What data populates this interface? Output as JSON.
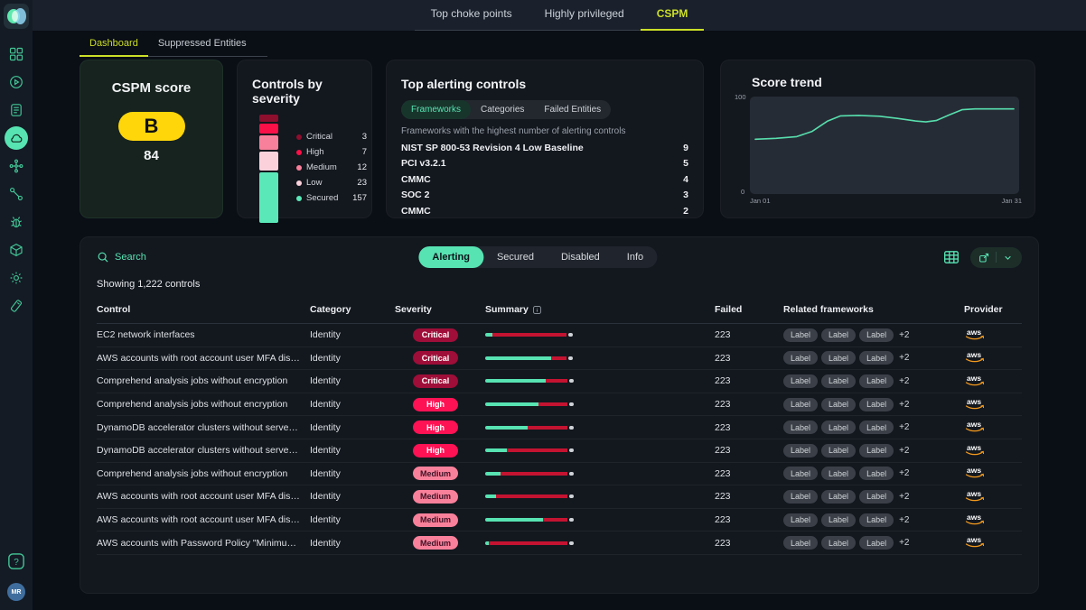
{
  "topbar": {
    "tabs": [
      {
        "label": "Top choke points",
        "active": false
      },
      {
        "label": "Highly privileged",
        "active": false
      },
      {
        "label": "CSPM",
        "active": true
      }
    ]
  },
  "subtabs": [
    {
      "label": "Dashboard",
      "active": true
    },
    {
      "label": "Suppressed Entities",
      "active": false
    }
  ],
  "sidebar": {
    "items": [
      {
        "name": "dashboard-grid",
        "active": false
      },
      {
        "name": "play-circle",
        "active": false
      },
      {
        "name": "document",
        "active": false
      },
      {
        "name": "cloud",
        "active": true
      },
      {
        "name": "nodes",
        "active": false
      },
      {
        "name": "route",
        "active": false
      },
      {
        "name": "bug",
        "active": false
      },
      {
        "name": "cube",
        "active": false
      },
      {
        "name": "gear",
        "active": false
      },
      {
        "name": "tag",
        "active": false
      }
    ],
    "avatar_initials": "MR"
  },
  "score_card": {
    "title": "CSPM score",
    "grade": "B",
    "score": "84",
    "grade_color": "#ffd60a"
  },
  "alerting_card": {
    "title": "Top alerting controls",
    "tabs": [
      {
        "label": "Frameworks",
        "active": true
      },
      {
        "label": "Categories",
        "active": false
      },
      {
        "label": "Failed Entities",
        "active": false
      }
    ],
    "subtitle": "Frameworks with the highest number of alerting controls",
    "items": [
      {
        "name": "NIST SP 800-53 Revision 4 Low Baseline",
        "value": 9
      },
      {
        "name": "PCI v3.2.1",
        "value": 5
      },
      {
        "name": "CMMC",
        "value": 4
      },
      {
        "name": "SOC 2",
        "value": 3
      },
      {
        "name": "CMMC",
        "value": 2
      }
    ]
  },
  "trend_card": {
    "title": "Score trend",
    "y_max": "100",
    "y_min": "0",
    "x_start": "Jan 01",
    "x_end": "Jan 31"
  },
  "chart_data": [
    {
      "type": "bar",
      "title": "Controls by severity",
      "orientation": "stacked-vertical",
      "categories": [
        "Critical",
        "High",
        "Medium",
        "Low",
        "Secured"
      ],
      "values": [
        3,
        7,
        12,
        23,
        157
      ],
      "colors": [
        "#8e0e2e",
        "#fb1048",
        "#f9809a",
        "#fbd2dc",
        "#5be8b8"
      ],
      "legend_position": "right"
    },
    {
      "type": "line",
      "title": "Score trend",
      "x": [
        0,
        8,
        16,
        22,
        28,
        33,
        40,
        48,
        55,
        62,
        66,
        70,
        75,
        80,
        85,
        100
      ],
      "y": [
        57,
        58,
        60,
        66,
        78,
        84,
        84.5,
        83.5,
        81,
        78,
        77,
        78.5,
        85,
        91,
        92,
        92
      ],
      "ylim": [
        0,
        100
      ],
      "x_tick_labels": [
        "Jan 01",
        "Jan 31"
      ],
      "line_color": "#57dfae",
      "grid": false
    }
  ],
  "table": {
    "search_label": "Search",
    "showing": "Showing 1,222 controls",
    "tabs": [
      {
        "label": "Alerting",
        "active": true
      },
      {
        "label": "Secured",
        "active": false
      },
      {
        "label": "Disabled",
        "active": false
      },
      {
        "label": "Info",
        "active": false
      }
    ],
    "columns": [
      "Control",
      "Category",
      "Severity",
      "Summary",
      "Failed",
      "Related frameworks",
      "Provider"
    ],
    "severity_styles": {
      "Critical": {
        "bg": "#9e0e38",
        "fg": "#ffffff"
      },
      "High": {
        "bg": "#ff1254",
        "fg": "#ffffff"
      },
      "Medium": {
        "bg": "#f9809a",
        "fg": "#3d1226"
      }
    },
    "rows": [
      {
        "control": "EC2 network interfaces",
        "category": "Identity",
        "severity": "Critical",
        "bar": {
          "green": 0.08,
          "red": 0.84
        },
        "failed": "223",
        "labels": [
          "Label",
          "Label",
          "Label"
        ],
        "extra": "+2",
        "provider": "aws"
      },
      {
        "control": "AWS accounts with root account user MFA disabled",
        "category": "Identity",
        "severity": "Critical",
        "bar": {
          "green": 0.74,
          "red": 0.18
        },
        "failed": "223",
        "labels": [
          "Label",
          "Label",
          "Label"
        ],
        "extra": "+2",
        "provider": "aws"
      },
      {
        "control": "Comprehend analysis jobs without encryption",
        "category": "Identity",
        "severity": "Critical",
        "bar": {
          "green": 0.68,
          "red": 0.25
        },
        "failed": "223",
        "labels": [
          "Label",
          "Label",
          "Label"
        ],
        "extra": "+2",
        "provider": "aws"
      },
      {
        "control": "Comprehend analysis jobs without encryption",
        "category": "Identity",
        "severity": "High",
        "bar": {
          "green": 0.6,
          "red": 0.33
        },
        "failed": "223",
        "labels": [
          "Label",
          "Label",
          "Label"
        ],
        "extra": "+2",
        "provider": "aws"
      },
      {
        "control": "DynamoDB accelerator clusters without server encryption at…",
        "category": "Identity",
        "severity": "High",
        "bar": {
          "green": 0.48,
          "red": 0.45
        },
        "failed": "223",
        "labels": [
          "Label",
          "Label",
          "Label"
        ],
        "extra": "+2",
        "provider": "aws"
      },
      {
        "control": "DynamoDB accelerator clusters without server encryption at…",
        "category": "Identity",
        "severity": "High",
        "bar": {
          "green": 0.25,
          "red": 0.68
        },
        "failed": "223",
        "labels": [
          "Label",
          "Label",
          "Label"
        ],
        "extra": "+2",
        "provider": "aws"
      },
      {
        "control": "Comprehend analysis jobs without encryption",
        "category": "Identity",
        "severity": "Medium",
        "bar": {
          "green": 0.17,
          "red": 0.76
        },
        "failed": "223",
        "labels": [
          "Label",
          "Label",
          "Label"
        ],
        "extra": "+2",
        "provider": "aws"
      },
      {
        "control": "AWS accounts with root account user MFA disabled",
        "category": "Identity",
        "severity": "Medium",
        "bar": {
          "green": 0.12,
          "red": 0.81
        },
        "failed": "223",
        "labels": [
          "Label",
          "Label",
          "Label"
        ],
        "extra": "+2",
        "provider": "aws"
      },
      {
        "control": "AWS accounts with root account user MFA disabled",
        "category": "Identity",
        "severity": "Medium",
        "bar": {
          "green": 0.65,
          "red": 0.28
        },
        "failed": "223",
        "labels": [
          "Label",
          "Label",
          "Label"
        ],
        "extra": "+2",
        "provider": "aws"
      },
      {
        "control": "AWS accounts with Password Policy \"Minimum password len…",
        "category": "Identity",
        "severity": "Medium",
        "bar": {
          "green": 0.04,
          "red": 0.89
        },
        "failed": "223",
        "labels": [
          "Label",
          "Label",
          "Label"
        ],
        "extra": "+2",
        "provider": "aws"
      }
    ]
  }
}
